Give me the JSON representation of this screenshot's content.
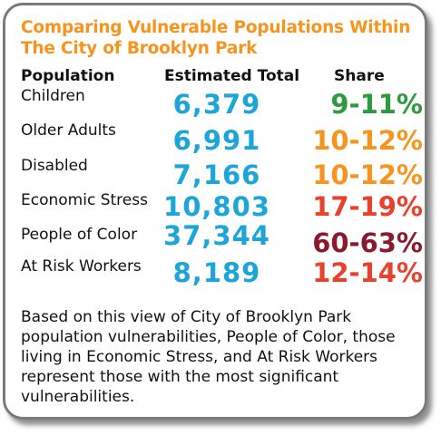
{
  "title": "Comparing Vulnerable Populations Within The City of Brooklyn Park",
  "headers": {
    "population": "Population",
    "total": "Estimated Total",
    "share": "Share"
  },
  "rows": [
    {
      "population": "Children",
      "total": "6,379",
      "share": "9-11%",
      "share_color": "#2e9a3f"
    },
    {
      "population": "Older Adults",
      "total": "6,991",
      "share": "10-12%",
      "share_color": "#f7941d"
    },
    {
      "population": "Disabled",
      "total": "7,166",
      "share": "10-12%",
      "share_color": "#f7941d"
    },
    {
      "population": "Economic Stress",
      "total": "10,803",
      "share": "17-19%",
      "share_color": "#e8412c"
    },
    {
      "population": "People of Color",
      "total": "37,344",
      "share": "60-63%",
      "share_color": "#8b1a2e"
    },
    {
      "population": "At Risk Workers",
      "total": "8,189",
      "share": "12-14%",
      "share_color": "#e8412c"
    }
  ],
  "note": "Based on this view of City of Brooklyn Park population vulnerabilities, People of Color, those living in Economic Stress, and At Risk Workers represent those with the most significant vulnerabilities.",
  "colors": {
    "title": "#f7941d",
    "total": "#1ba5d8",
    "border": "#7a7a7a"
  }
}
